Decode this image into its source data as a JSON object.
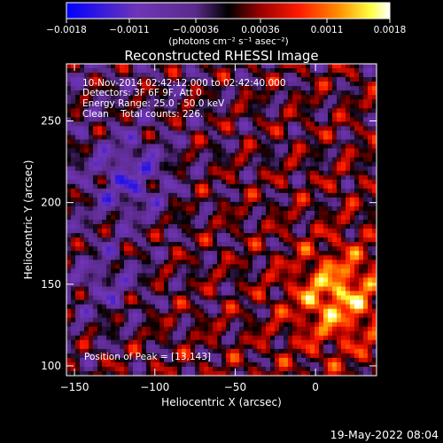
{
  "chart_data": {
    "type": "heatmap",
    "title": "Reconstructed RHESSI Image",
    "xlabel": "Heliocentric X (arcsec)",
    "ylabel": "Heliocentric Y (arcsec)",
    "xlim": [
      -155,
      38
    ],
    "ylim": [
      94,
      285
    ],
    "x_ticks": [
      -150,
      -100,
      -50,
      0
    ],
    "x_tick_labels": [
      "−150",
      "−100",
      "−50",
      "0"
    ],
    "y_ticks": [
      100,
      150,
      200,
      250
    ],
    "y_tick_labels": [
      "100",
      "150",
      "200",
      "250"
    ],
    "colorbar": {
      "range": [
        -0.0018,
        0.0018
      ],
      "ticks": [
        -0.0018,
        -0.0011,
        -0.00036,
        0.00036,
        0.0011,
        0.0018
      ],
      "tick_labels": [
        "−0.0018",
        "−0.0011",
        "−0.00036",
        "0.00036",
        "0.0011",
        "0.0018"
      ],
      "unit_label": "(photons cm⁻² s⁻¹ asec⁻²)",
      "colors": [
        "#0000ff",
        "#6f35b7",
        "#5a2a8a",
        "#000000",
        "#9a0000",
        "#ff1a00",
        "#ff8c00",
        "#ffff40",
        "#ffffff"
      ]
    },
    "annotations": [
      "10-Nov-2014 02:42:12.000 to 02:42:40.000",
      "Detectors: 3F 6F 9F, Att 0",
      "Energy Range: 25.0 - 50.0 keV",
      "Clean    Total counts: 226."
    ],
    "peak_label": "Position of Peak = [13,143]",
    "peak": [
      13,
      143
    ],
    "timestamp": "19-May-2022 08:04"
  }
}
